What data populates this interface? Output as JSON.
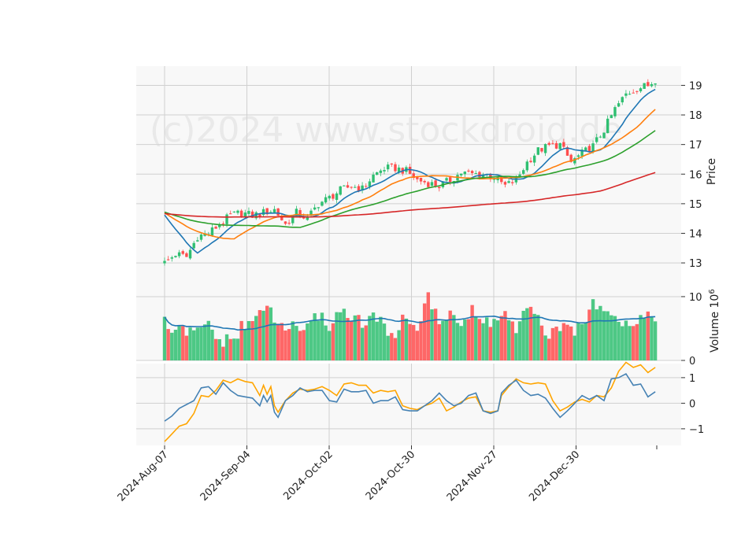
{
  "chart_data": {
    "type": "candlestick",
    "watermark": "(c)2024 www.stockdroid.de",
    "x_ticks": [
      "2024-Aug-07",
      "2024-Sep-04",
      "2024-Oct-02",
      "2024-Oct-30",
      "2024-Nov-27",
      "2024-Dec-30"
    ],
    "panels": {
      "price": {
        "ylabel": "Price",
        "yticks": [
          "13",
          "14",
          "15",
          "16",
          "17",
          "18",
          "19"
        ],
        "ylim": [
          12.55,
          19.65
        ]
      },
      "volume": {
        "ylabel": "Volume",
        "exponent_label": "10",
        "exponent": "6",
        "yticks": [
          "0",
          "10"
        ],
        "ylim": [
          0,
          13.2
        ]
      },
      "oscillator": {
        "yticks": [
          "−1",
          "0",
          "1"
        ],
        "ylim": [
          -1.65,
          1.55
        ]
      }
    },
    "colors": {
      "up": "#2fbf71",
      "down": "#ff4d4d",
      "ma_fast": "#1f77b4",
      "ma_mid": "#ff7f0e",
      "ma_slow": "#2ca02c",
      "ma_long": "#d62728",
      "vol_ma": "#1f77b4",
      "osc_a": "#4682b4",
      "osc_b": "#ffa500",
      "panel_bg": "#f8f8f8",
      "grid": "#d0d0d0"
    },
    "close_path": [
      [
        0,
        13.0
      ],
      [
        3,
        13.3
      ],
      [
        6,
        13.2
      ],
      [
        9,
        13.9
      ],
      [
        12,
        14.0
      ],
      [
        15,
        14.3
      ],
      [
        18,
        14.6
      ],
      [
        21,
        14.7
      ],
      [
        24,
        14.6
      ],
      [
        27,
        14.7
      ],
      [
        30,
        14.8
      ],
      [
        33,
        14.3
      ],
      [
        36,
        14.7
      ],
      [
        39,
        14.5
      ],
      [
        42,
        15.0
      ],
      [
        45,
        15.2
      ],
      [
        48,
        15.45
      ],
      [
        51,
        15.6
      ],
      [
        54,
        15.5
      ],
      [
        57,
        15.95
      ],
      [
        60,
        16.2
      ],
      [
        63,
        16.2
      ],
      [
        66,
        16.1
      ],
      [
        69,
        15.8
      ],
      [
        72,
        15.7
      ],
      [
        75,
        15.6
      ],
      [
        78,
        15.8
      ],
      [
        81,
        16.05
      ],
      [
        84,
        16.0
      ],
      [
        87,
        16.0
      ],
      [
        90,
        15.9
      ],
      [
        93,
        15.6
      ],
      [
        96,
        15.8
      ],
      [
        99,
        16.4
      ],
      [
        102,
        16.8
      ],
      [
        105,
        16.95
      ],
      [
        108,
        17.0
      ],
      [
        111,
        16.4
      ],
      [
        114,
        16.7
      ],
      [
        117,
        16.95
      ],
      [
        120,
        17.5
      ],
      [
        123,
        18.2
      ],
      [
        126,
        18.7
      ],
      [
        129,
        18.9
      ],
      [
        132,
        19.0
      ],
      [
        134,
        19.2
      ]
    ],
    "volume_path": [
      [
        0,
        5.9
      ],
      [
        3,
        4.2
      ],
      [
        6,
        4.6
      ],
      [
        9,
        4.2
      ],
      [
        12,
        5.8
      ],
      [
        15,
        3.0
      ],
      [
        18,
        2.9
      ],
      [
        21,
        5.1
      ],
      [
        24,
        5.8
      ],
      [
        27,
        8.8
      ],
      [
        30,
        6.3
      ],
      [
        33,
        4.9
      ],
      [
        36,
        5.7
      ],
      [
        39,
        4.7
      ],
      [
        42,
        7.2
      ],
      [
        45,
        5.5
      ],
      [
        48,
        7.8
      ],
      [
        51,
        7.2
      ],
      [
        54,
        5.4
      ],
      [
        57,
        7.0
      ],
      [
        60,
        5.1
      ],
      [
        63,
        4.3
      ],
      [
        66,
        6.9
      ],
      [
        69,
        5.1
      ],
      [
        72,
        10.2
      ],
      [
        75,
        5.3
      ],
      [
        78,
        8.2
      ],
      [
        81,
        5.5
      ],
      [
        84,
        7.5
      ],
      [
        87,
        6.0
      ],
      [
        90,
        6.1
      ],
      [
        93,
        7.6
      ],
      [
        96,
        4.3
      ],
      [
        99,
        8.1
      ],
      [
        102,
        6.2
      ],
      [
        105,
        4.1
      ],
      [
        108,
        4.4
      ],
      [
        111,
        5.2
      ],
      [
        114,
        4.6
      ],
      [
        117,
        9.3
      ],
      [
        120,
        8.7
      ],
      [
        123,
        7.5
      ],
      [
        126,
        5.6
      ],
      [
        129,
        6.4
      ],
      [
        132,
        7.2
      ],
      [
        134,
        7.3
      ]
    ],
    "osc_a_path": [
      [
        0,
        -0.7
      ],
      [
        2,
        -0.5
      ],
      [
        4,
        -0.2
      ],
      [
        6,
        -0.05
      ],
      [
        8,
        0.1
      ],
      [
        10,
        0.6
      ],
      [
        12,
        0.65
      ],
      [
        14,
        0.35
      ],
      [
        16,
        0.8
      ],
      [
        18,
        0.5
      ],
      [
        20,
        0.3
      ],
      [
        22,
        0.25
      ],
      [
        24,
        0.2
      ],
      [
        26,
        -0.1
      ],
      [
        27,
        0.3
      ],
      [
        28,
        0.05
      ],
      [
        29,
        0.3
      ],
      [
        30,
        -0.35
      ],
      [
        31,
        -0.55
      ],
      [
        33,
        0.1
      ],
      [
        35,
        0.3
      ],
      [
        37,
        0.6
      ],
      [
        39,
        0.45
      ],
      [
        41,
        0.5
      ],
      [
        43,
        0.5
      ],
      [
        45,
        0.1
      ],
      [
        47,
        0.05
      ],
      [
        49,
        0.55
      ],
      [
        51,
        0.45
      ],
      [
        53,
        0.45
      ],
      [
        55,
        0.5
      ],
      [
        57,
        0.0
      ],
      [
        59,
        0.1
      ],
      [
        61,
        0.1
      ],
      [
        63,
        0.25
      ],
      [
        65,
        -0.25
      ],
      [
        67,
        -0.3
      ],
      [
        69,
        -0.3
      ],
      [
        71,
        -0.1
      ],
      [
        73,
        0.1
      ],
      [
        75,
        0.4
      ],
      [
        77,
        0.1
      ],
      [
        79,
        -0.1
      ],
      [
        81,
        0.0
      ],
      [
        83,
        0.3
      ],
      [
        85,
        0.4
      ],
      [
        87,
        -0.3
      ],
      [
        89,
        -0.4
      ],
      [
        91,
        -0.3
      ],
      [
        92,
        0.4
      ],
      [
        94,
        0.7
      ],
      [
        96,
        0.9
      ],
      [
        98,
        0.5
      ],
      [
        100,
        0.3
      ],
      [
        102,
        0.35
      ],
      [
        104,
        0.2
      ],
      [
        106,
        -0.2
      ],
      [
        108,
        -0.55
      ],
      [
        110,
        -0.3
      ],
      [
        112,
        0.0
      ],
      [
        114,
        0.3
      ],
      [
        116,
        0.15
      ],
      [
        118,
        0.3
      ],
      [
        120,
        0.1
      ],
      [
        122,
        0.95
      ],
      [
        124,
        1.0
      ],
      [
        126,
        1.15
      ],
      [
        128,
        0.7
      ],
      [
        130,
        0.75
      ],
      [
        132,
        0.25
      ],
      [
        134,
        0.45
      ]
    ],
    "osc_b_path": [
      [
        0,
        -1.5
      ],
      [
        2,
        -1.2
      ],
      [
        4,
        -0.9
      ],
      [
        6,
        -0.8
      ],
      [
        8,
        -0.4
      ],
      [
        10,
        0.3
      ],
      [
        12,
        0.25
      ],
      [
        14,
        0.5
      ],
      [
        16,
        0.9
      ],
      [
        18,
        0.8
      ],
      [
        20,
        0.95
      ],
      [
        22,
        0.85
      ],
      [
        24,
        0.8
      ],
      [
        26,
        0.3
      ],
      [
        27,
        0.7
      ],
      [
        28,
        0.35
      ],
      [
        29,
        0.65
      ],
      [
        30,
        -0.1
      ],
      [
        31,
        -0.35
      ],
      [
        33,
        0.1
      ],
      [
        35,
        0.4
      ],
      [
        37,
        0.55
      ],
      [
        39,
        0.5
      ],
      [
        41,
        0.55
      ],
      [
        43,
        0.65
      ],
      [
        45,
        0.5
      ],
      [
        47,
        0.3
      ],
      [
        49,
        0.75
      ],
      [
        51,
        0.8
      ],
      [
        53,
        0.7
      ],
      [
        55,
        0.7
      ],
      [
        57,
        0.4
      ],
      [
        59,
        0.5
      ],
      [
        61,
        0.45
      ],
      [
        63,
        0.5
      ],
      [
        65,
        -0.1
      ],
      [
        67,
        -0.2
      ],
      [
        69,
        -0.25
      ],
      [
        71,
        -0.1
      ],
      [
        73,
        0.0
      ],
      [
        75,
        0.2
      ],
      [
        77,
        -0.3
      ],
      [
        79,
        -0.15
      ],
      [
        81,
        0.05
      ],
      [
        83,
        0.2
      ],
      [
        85,
        0.25
      ],
      [
        87,
        -0.3
      ],
      [
        89,
        -0.35
      ],
      [
        91,
        -0.3
      ],
      [
        92,
        0.3
      ],
      [
        94,
        0.65
      ],
      [
        96,
        0.95
      ],
      [
        98,
        0.8
      ],
      [
        100,
        0.75
      ],
      [
        102,
        0.8
      ],
      [
        104,
        0.75
      ],
      [
        106,
        0.1
      ],
      [
        108,
        -0.3
      ],
      [
        110,
        -0.15
      ],
      [
        112,
        0.05
      ],
      [
        114,
        0.15
      ],
      [
        116,
        0.05
      ],
      [
        118,
        0.3
      ],
      [
        120,
        0.25
      ],
      [
        122,
        0.6
      ],
      [
        124,
        1.25
      ],
      [
        126,
        1.6
      ],
      [
        128,
        1.4
      ],
      [
        130,
        1.5
      ],
      [
        132,
        1.2
      ],
      [
        134,
        1.4
      ]
    ]
  }
}
